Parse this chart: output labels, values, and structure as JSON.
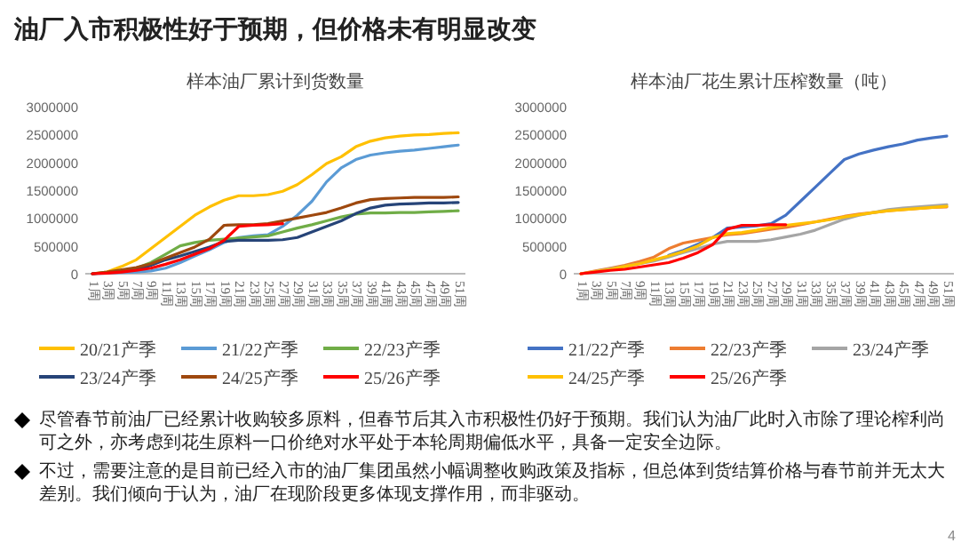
{
  "chart_data": [
    {
      "type": "other",
      "title": "油厂入市积极性好于预期，但价格未有明显改变",
      "annotations": [
        "尽管春节前油厂已经累计收购较多原料，但春节后其入市积极性仍好于预期。我们认为油厂此时入市除了理论榨利尚可之外，亦考虑到花生原料一口价绝对水平处于本轮周期偏低水平，具备一定安全边际。",
        "不过，需要注意的是目前已经入市的油厂集团虽然小幅调整收购政策及指标，但总体到货结算价格与春节前并无太大差别。我们倾向于认为，油厂在现阶段更多体现支撑作用，而非驱动。",
        "4"
      ]
    },
    {
      "type": "line",
      "title": "样本油厂累计到货数量",
      "categories": [
        "1周",
        "3周",
        "5周",
        "7周",
        "9周",
        "11周",
        "13周",
        "15周",
        "17周",
        "19周",
        "21周",
        "23周",
        "25周",
        "27周",
        "29周",
        "31周",
        "33周",
        "35周",
        "37周",
        "39周",
        "41周",
        "43周",
        "45周",
        "47周",
        "49周",
        "51周"
      ],
      "ylim": [
        0,
        3000000
      ],
      "yticks": [
        0,
        500000,
        1000000,
        1500000,
        2000000,
        2500000,
        3000000
      ],
      "legend": "bottom",
      "series": [
        {
          "name": "20/21产季",
          "color": "#ffc000",
          "values": [
            0,
            30000,
            130000,
            250000,
            450000,
            650000,
            850000,
            1050000,
            1200000,
            1320000,
            1400000,
            1400000,
            1420000,
            1480000,
            1600000,
            1780000,
            1980000,
            2100000,
            2280000,
            2380000,
            2440000,
            2470000,
            2490000,
            2500000,
            2520000,
            2530000
          ]
        },
        {
          "name": "21/22产季",
          "color": "#5b9bd5",
          "values": [
            0,
            10000,
            20000,
            30000,
            50000,
            100000,
            200000,
            320000,
            430000,
            560000,
            650000,
            680000,
            700000,
            850000,
            1050000,
            1300000,
            1650000,
            1900000,
            2050000,
            2130000,
            2170000,
            2200000,
            2220000,
            2250000,
            2280000,
            2310000
          ]
        },
        {
          "name": "22/23产季",
          "color": "#70ad47",
          "values": [
            null,
            null,
            50000,
            100000,
            200000,
            350000,
            500000,
            560000,
            600000,
            620000,
            640000,
            660000,
            680000,
            750000,
            820000,
            880000,
            950000,
            1020000,
            1070000,
            1090000,
            1090000,
            1100000,
            1100000,
            1110000,
            1120000,
            1130000
          ]
        },
        {
          "name": "23/24产季",
          "color": "#264478",
          "values": [
            0,
            20000,
            50000,
            80000,
            150000,
            250000,
            320000,
            400000,
            480000,
            580000,
            600000,
            600000,
            600000,
            610000,
            650000,
            750000,
            850000,
            950000,
            1080000,
            1180000,
            1230000,
            1250000,
            1260000,
            1270000,
            1270000,
            1280000
          ]
        },
        {
          "name": "24/25产季",
          "color": "#9e480e",
          "values": [
            0,
            30000,
            70000,
            110000,
            180000,
            280000,
            380000,
            480000,
            620000,
            870000,
            880000,
            880000,
            900000,
            950000,
            1000000,
            1050000,
            1100000,
            1180000,
            1270000,
            1330000,
            1350000,
            1360000,
            1370000,
            1370000,
            1370000,
            1380000
          ]
        },
        {
          "name": "25/26产季",
          "color": "#ff0000",
          "values": [
            0,
            10000,
            30000,
            60000,
            100000,
            170000,
            250000,
            350000,
            450000,
            600000,
            850000,
            870000,
            880000,
            900000,
            null,
            null,
            null,
            null,
            null,
            null,
            null,
            null,
            null,
            null,
            null,
            null
          ]
        }
      ]
    },
    {
      "type": "line",
      "title": "样本油厂花生累计压榨数量（吨）",
      "categories": [
        "1周",
        "3周",
        "5周",
        "7周",
        "9周",
        "11周",
        "13周",
        "15周",
        "17周",
        "19周",
        "21周",
        "23周",
        "25周",
        "27周",
        "29周",
        "31周",
        "33周",
        "35周",
        "37周",
        "39周",
        "41周",
        "43周",
        "45周",
        "47周",
        "49周",
        "51周"
      ],
      "ylim": [
        0,
        3000000
      ],
      "yticks": [
        0,
        500000,
        1000000,
        1500000,
        2000000,
        2500000,
        3000000
      ],
      "legend": "bottom",
      "series": [
        {
          "name": "21/22产季",
          "color": "#4472c4",
          "values": [
            null,
            null,
            null,
            null,
            null,
            null,
            330000,
            420000,
            530000,
            650000,
            820000,
            840000,
            860000,
            900000,
            1050000,
            1300000,
            1550000,
            1800000,
            2050000,
            2150000,
            2220000,
            2280000,
            2330000,
            2400000,
            2440000,
            2470000
          ]
        },
        {
          "name": "22/23产季",
          "color": "#ed7d31",
          "values": [
            0,
            50000,
            100000,
            150000,
            220000,
            300000,
            450000,
            550000,
            600000,
            650000,
            700000,
            720000,
            760000,
            800000,
            830000,
            880000,
            930000,
            980000,
            1030000,
            1070000,
            1100000,
            1130000,
            1150000,
            1170000,
            1190000,
            1200000
          ]
        },
        {
          "name": "23/24产季",
          "color": "#a5a5a5",
          "values": [
            0,
            40000,
            90000,
            130000,
            180000,
            230000,
            300000,
            380000,
            450000,
            530000,
            580000,
            580000,
            580000,
            610000,
            660000,
            710000,
            780000,
            880000,
            980000,
            1050000,
            1100000,
            1150000,
            1180000,
            1200000,
            1220000,
            1240000
          ]
        },
        {
          "name": "24/25产季",
          "color": "#ffc000",
          "values": [
            0,
            40000,
            80000,
            130000,
            180000,
            250000,
            320000,
            400000,
            500000,
            650000,
            720000,
            740000,
            780000,
            830000,
            870000,
            900000,
            930000,
            970000,
            1020000,
            1060000,
            1100000,
            1130000,
            1150000,
            1170000,
            1190000,
            1210000
          ]
        },
        {
          "name": "25/26产季",
          "color": "#ff0000",
          "values": [
            0,
            30000,
            60000,
            80000,
            120000,
            160000,
            200000,
            280000,
            380000,
            520000,
            800000,
            870000,
            870000,
            880000,
            880000,
            null,
            null,
            null,
            null,
            null,
            null,
            null,
            null,
            null,
            null,
            null
          ]
        }
      ]
    }
  ]
}
